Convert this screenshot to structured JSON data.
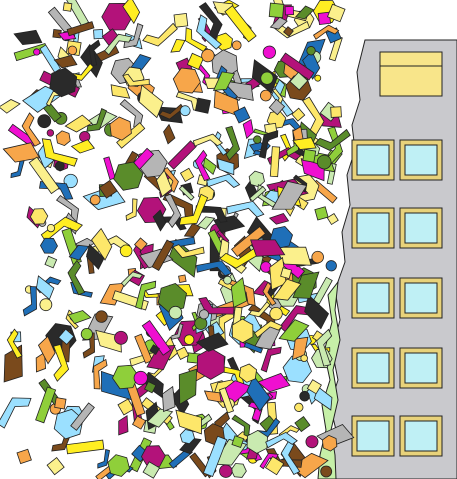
{
  "scene": {
    "subject": "debris-cloud-striking-building",
    "colors": {
      "background": "#ffffff",
      "outline": "#222222",
      "building_wall": "#c9c9cd",
      "window_frame": "#e8d27a",
      "window_glass": "#bff0f5",
      "roof_panel": "#f8e58a",
      "grass": "#c6f0a8",
      "debris_palette": [
        "#fbf08c",
        "#f7a64a",
        "#1f6fb8",
        "#8fcf3a",
        "#b3127a",
        "#ef0fd0",
        "#ffee22",
        "#b5b5b5",
        "#5a8c2a",
        "#7a4a1c",
        "#fde76a",
        "#9be0ff",
        "#2a2a2a",
        "#c9eab0"
      ]
    }
  }
}
